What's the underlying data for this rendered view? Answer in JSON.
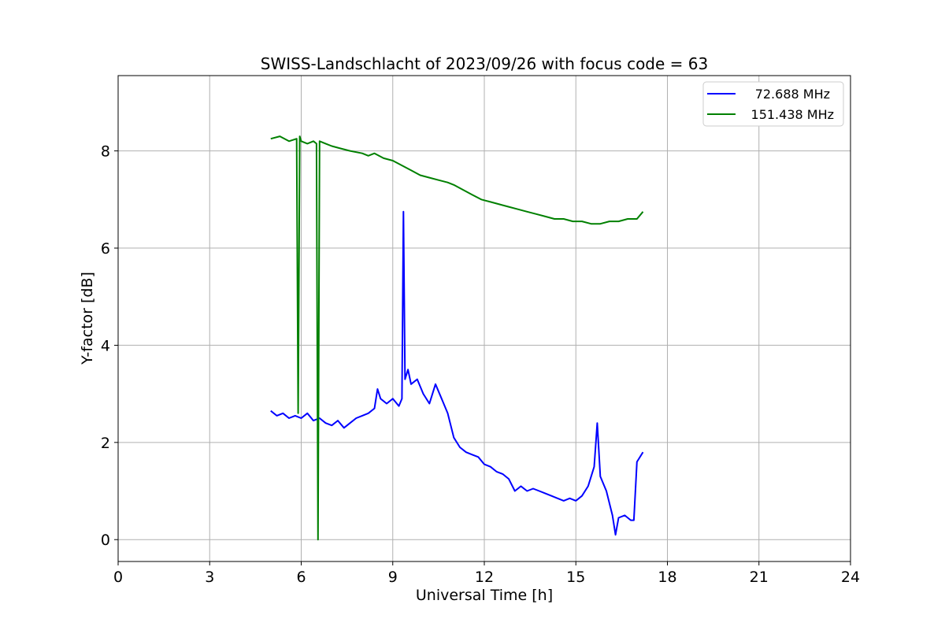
{
  "chart_data": {
    "type": "line",
    "title": "SWISS-Landschlacht of 2023/09/26 with focus code = 63",
    "xlabel": "Universal Time [h]",
    "ylabel": "Y-factor [dB]",
    "xlim": [
      0,
      24
    ],
    "ylim": [
      -0.45,
      9.55
    ],
    "xticks": [
      0,
      3,
      6,
      9,
      12,
      15,
      18,
      21,
      24
    ],
    "yticks": [
      0,
      2,
      4,
      6,
      8
    ],
    "grid": true,
    "legend_position": "top-right",
    "series": [
      {
        "name": "72.688 MHz",
        "color": "#0000ff",
        "x": [
          5.0,
          5.2,
          5.4,
          5.6,
          5.8,
          6.0,
          6.2,
          6.4,
          6.6,
          6.8,
          7.0,
          7.2,
          7.4,
          7.6,
          7.8,
          8.0,
          8.2,
          8.4,
          8.5,
          8.6,
          8.8,
          9.0,
          9.2,
          9.3,
          9.35,
          9.4,
          9.5,
          9.6,
          9.8,
          10.0,
          10.2,
          10.4,
          10.6,
          10.8,
          11.0,
          11.2,
          11.4,
          11.6,
          11.8,
          12.0,
          12.2,
          12.4,
          12.6,
          12.8,
          13.0,
          13.2,
          13.4,
          13.6,
          13.8,
          14.0,
          14.2,
          14.4,
          14.6,
          14.8,
          15.0,
          15.2,
          15.4,
          15.6,
          15.7,
          15.8,
          16.0,
          16.2,
          16.3,
          16.4,
          16.6,
          16.8,
          16.9,
          17.0,
          17.2
        ],
        "y": [
          2.65,
          2.55,
          2.6,
          2.5,
          2.55,
          2.5,
          2.6,
          2.45,
          2.5,
          2.4,
          2.35,
          2.45,
          2.3,
          2.4,
          2.5,
          2.55,
          2.6,
          2.7,
          3.1,
          2.9,
          2.8,
          2.9,
          2.75,
          2.9,
          6.75,
          3.3,
          3.5,
          3.2,
          3.3,
          3.0,
          2.8,
          3.2,
          2.9,
          2.6,
          2.1,
          1.9,
          1.8,
          1.75,
          1.7,
          1.55,
          1.5,
          1.4,
          1.35,
          1.25,
          1.0,
          1.1,
          1.0,
          1.05,
          1.0,
          0.95,
          0.9,
          0.85,
          0.8,
          0.85,
          0.8,
          0.9,
          1.1,
          1.5,
          2.4,
          1.3,
          1.0,
          0.5,
          0.1,
          0.45,
          0.5,
          0.4,
          0.4,
          1.6,
          1.8
        ]
      },
      {
        "name": "151.438 MHz",
        "color": "#008000",
        "x": [
          5.0,
          5.3,
          5.6,
          5.85,
          5.9,
          5.95,
          6.0,
          6.2,
          6.4,
          6.5,
          6.55,
          6.6,
          6.8,
          7.0,
          7.3,
          7.6,
          8.0,
          8.2,
          8.4,
          8.7,
          9.0,
          9.3,
          9.6,
          9.9,
          10.2,
          10.5,
          10.8,
          11.0,
          11.3,
          11.6,
          11.9,
          12.2,
          12.5,
          12.8,
          13.1,
          13.4,
          13.7,
          14.0,
          14.3,
          14.6,
          14.9,
          15.2,
          15.5,
          15.8,
          16.1,
          16.4,
          16.7,
          17.0,
          17.2
        ],
        "y": [
          8.25,
          8.3,
          8.2,
          8.25,
          2.6,
          8.3,
          8.2,
          8.15,
          8.2,
          8.15,
          0.0,
          8.2,
          8.15,
          8.1,
          8.05,
          8.0,
          7.95,
          7.9,
          7.95,
          7.85,
          7.8,
          7.7,
          7.6,
          7.5,
          7.45,
          7.4,
          7.35,
          7.3,
          7.2,
          7.1,
          7.0,
          6.95,
          6.9,
          6.85,
          6.8,
          6.75,
          6.7,
          6.65,
          6.6,
          6.6,
          6.55,
          6.55,
          6.5,
          6.5,
          6.55,
          6.55,
          6.6,
          6.6,
          6.75
        ]
      }
    ]
  }
}
